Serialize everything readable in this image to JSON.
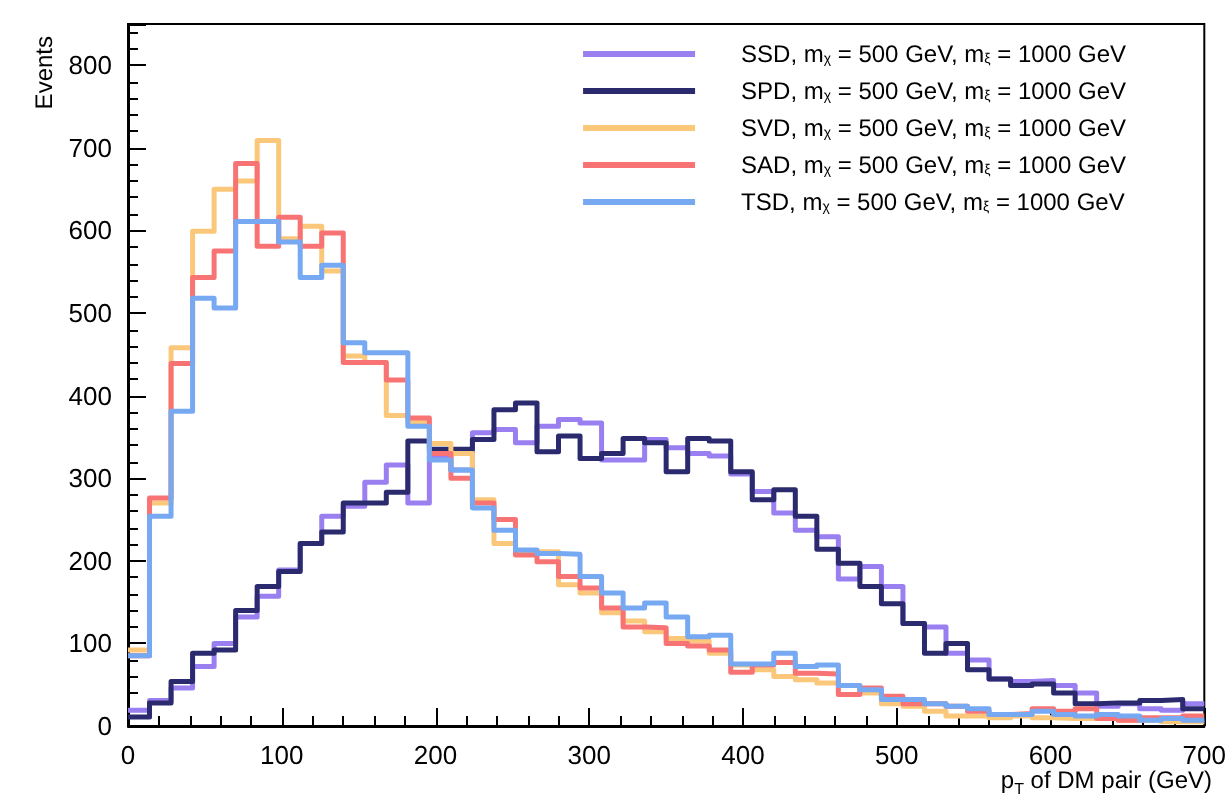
{
  "chart_data": {
    "type": "histogram",
    "xlabel": "p$_{T}$ of DM pair (GeV)",
    "ylabel": "Events",
    "bins": [
      0,
      14,
      28,
      42,
      56,
      70,
      84,
      98,
      112,
      126,
      140,
      154,
      168,
      182,
      196,
      210,
      224,
      238,
      252,
      266,
      280,
      294,
      308,
      322,
      336,
      350,
      364,
      378,
      392,
      406,
      420,
      434,
      448,
      462,
      476,
      490,
      504,
      518,
      532,
      546,
      560,
      574,
      588,
      602,
      616,
      630,
      644,
      658,
      672,
      686,
      700
    ],
    "series": [
      {
        "name": "SSD, m$_{χ}$ = 500 GeV, m$_{ξ}$ = 1000 GeV",
        "color": "#9a7ff0",
        "values": [
          19,
          31,
          46,
          72,
          100,
          132,
          157,
          189,
          221,
          254,
          266,
          295,
          316,
          270,
          327,
          310,
          355,
          359,
          343,
          363,
          371,
          367,
          322,
          322,
          347,
          337,
          330,
          327,
          305,
          284,
          258,
          237,
          229,
          178,
          193,
          169,
          124,
          120,
          88,
          80,
          57,
          54,
          55,
          49,
          40,
          24,
          27,
          21,
          19,
          27
        ]
      },
      {
        "name": "SPD, m$_{χ}$ = 500 GeV, m$_{ξ}$ = 1000 GeV",
        "color": "#2b2a6e",
        "values": [
          11,
          28,
          54,
          88,
          92,
          140,
          169,
          187,
          221,
          235,
          270,
          270,
          283,
          345,
          335,
          335,
          347,
          383,
          391,
          332,
          351,
          324,
          330,
          348,
          343,
          308,
          348,
          345,
          308,
          274,
          286,
          254,
          214,
          197,
          169,
          148,
          124,
          88,
          100,
          68,
          57,
          49,
          51,
          40,
          27,
          28,
          28,
          31,
          32,
          21
        ]
      },
      {
        "name": "SVD, m$_{χ}$ = 500 GeV, m$_{ξ}$ = 1000 GeV",
        "color": "#fbc77a",
        "values": [
          92,
          270,
          458,
          599,
          650,
          660,
          709,
          590,
          605,
          551,
          448,
          440,
          376,
          368,
          342,
          330,
          274,
          221,
          209,
          211,
          171,
          161,
          137,
          127,
          114,
          106,
          103,
          88,
          74,
          68,
          60,
          56,
          52,
          49,
          40,
          27,
          24,
          18,
          12,
          12,
          10,
          12,
          10,
          9,
          9,
          9,
          7,
          7,
          5,
          5
        ]
      },
      {
        "name": "SAD, m$_{χ}$ = 500 GeV, m$_{ξ}$ = 1000 GeV",
        "color": "#f87474",
        "values": [
          85,
          276,
          439,
          543,
          575,
          681,
          581,
          616,
          581,
          597,
          440,
          440,
          419,
          373,
          330,
          300,
          270,
          250,
          207,
          199,
          181,
          167,
          143,
          120,
          119,
          100,
          97,
          92,
          65,
          74,
          77,
          64,
          63,
          38,
          46,
          36,
          27,
          27,
          24,
          18,
          14,
          15,
          21,
          18,
          21,
          9,
          7,
          10,
          10,
          12
        ]
      },
      {
        "name": "TSD, m$_{χ}$ = 500 GeV, m$_{ξ}$ = 1000 GeV",
        "color": "#76a9f2",
        "values": [
          85,
          254,
          381,
          518,
          506,
          611,
          611,
          586,
          543,
          558,
          464,
          452,
          452,
          363,
          322,
          310,
          264,
          237,
          213,
          209,
          208,
          181,
          161,
          143,
          149,
          132,
          108,
          110,
          75,
          75,
          88,
          72,
          74,
          49,
          44,
          32,
          32,
          27,
          24,
          21,
          14,
          14,
          18,
          14,
          12,
          14,
          12,
          7,
          9,
          7
        ]
      }
    ],
    "xlim": [
      0,
      700
    ],
    "xticks": [
      0,
      100,
      200,
      300,
      400,
      500,
      600,
      700
    ],
    "ylim": [
      0,
      850
    ],
    "yticks": [
      0,
      100,
      200,
      300,
      400,
      500,
      600,
      700,
      800
    ],
    "legend": "top right",
    "grid": false
  }
}
